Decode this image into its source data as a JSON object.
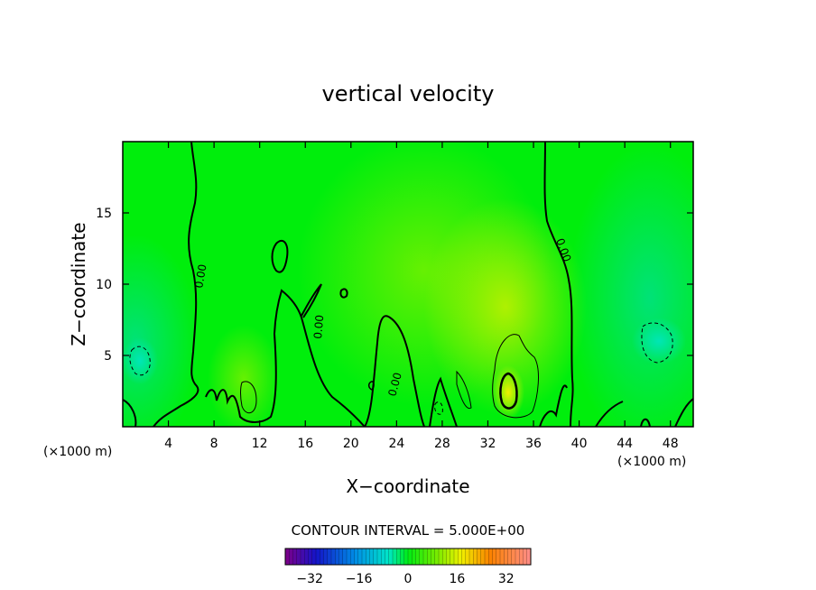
{
  "chart_data": {
    "type": "heatmap",
    "title": "vertical velocity",
    "xlabel": "X−coordinate",
    "ylabel": "Z−coordinate",
    "x_units_left": "(×1000 m)",
    "x_units_right": "(×1000 m)",
    "xlim": [
      0,
      50
    ],
    "ylim": [
      0,
      20
    ],
    "x_ticks": [
      4,
      8,
      12,
      16,
      20,
      24,
      28,
      32,
      36,
      40,
      44,
      48
    ],
    "y_ticks": [
      5,
      10,
      15
    ],
    "contour_interval_text": "CONTOUR INTERVAL = 5.000E+00",
    "contour_interval": 5.0,
    "zero_contour_label": "0.00",
    "colorbar": {
      "range": [
        -40,
        40
      ],
      "ticks": [
        -32,
        -16,
        0,
        16,
        32
      ],
      "tick_labels": [
        "−32",
        "−16",
        "0",
        "16",
        "32"
      ],
      "colormap": "rainbow"
    },
    "field_features": [
      {
        "kind": "max",
        "x": 33.7,
        "z": 2.5,
        "value": 12
      },
      {
        "kind": "max",
        "x": 11.0,
        "z": 2.0,
        "value": 6
      },
      {
        "kind": "max",
        "x": 33.5,
        "z": 6.0,
        "value": 7
      },
      {
        "kind": "max",
        "x": 29.5,
        "z": 2.5,
        "value": 5
      },
      {
        "kind": "min",
        "x": 46.3,
        "z": 6.0,
        "value": -6
      },
      {
        "kind": "min",
        "x": 1.5,
        "z": 5.0,
        "value": -6
      },
      {
        "kind": "min",
        "x": 27.0,
        "z": 1.5,
        "value": -4
      }
    ],
    "colors": {
      "background_field": "#00ee0c",
      "contour_line": "#000000"
    },
    "grid": false,
    "legend": "bottom-center"
  }
}
